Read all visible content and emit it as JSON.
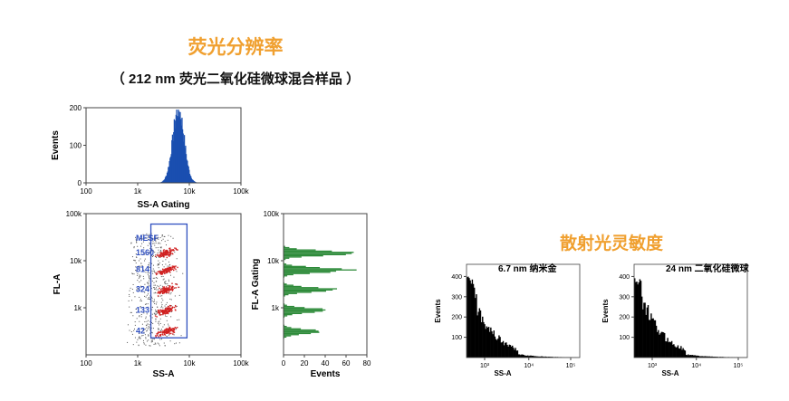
{
  "titles": {
    "main": "荧光分辨率",
    "sub": "（ 212 nm 荧光二氧化硅微球混合样品 ）",
    "sensitivity": "散射光灵敏度"
  },
  "chart_data": [
    {
      "type": "histogram",
      "xlabel": "SS-A Gating",
      "ylabel": "Events",
      "x_scale": "log",
      "x_ticks": [
        "100",
        "1k",
        "10k",
        "100k"
      ],
      "y_ticks": [
        "0",
        "100",
        "200"
      ],
      "ylim": [
        0,
        200
      ],
      "color": "#1a4fb0",
      "peak": {
        "x": 6000,
        "y": 195
      }
    },
    {
      "type": "scatter",
      "xlabel": "SS-A",
      "ylabel": "FL-A",
      "x_scale": "log",
      "y_scale": "log",
      "x_ticks": [
        "100",
        "1k",
        "10k",
        "100k"
      ],
      "y_ticks": [
        "1k",
        "10k",
        "100k"
      ],
      "gate_label": "MESF",
      "populations": [
        {
          "label": "1560",
          "fl": 15000
        },
        {
          "label": "814",
          "fl": 6500
        },
        {
          "label": "324",
          "fl": 2500
        },
        {
          "label": "133",
          "fl": 900
        },
        {
          "label": "42",
          "fl": 320
        }
      ],
      "gate_color": "#3050c0",
      "point_color": "#d02020"
    },
    {
      "type": "histogram",
      "orientation": "horizontal",
      "xlabel": "Events",
      "ylabel": "FL-A Gating",
      "y_scale": "log",
      "x_ticks": [
        "0",
        "20",
        "40",
        "60",
        "80"
      ],
      "y_ticks": [
        "1k",
        "10k",
        "100k"
      ],
      "xlim": [
        0,
        80
      ],
      "color": "#2e8b3a",
      "peaks": [
        {
          "fl": 15000,
          "count": 70
        },
        {
          "fl": 6500,
          "count": 63
        },
        {
          "fl": 2500,
          "count": 50
        },
        {
          "fl": 900,
          "count": 46
        },
        {
          "fl": 320,
          "count": 35
        }
      ]
    },
    {
      "type": "histogram",
      "title": "6.7 nm 纳米金",
      "xlabel": "SS-A",
      "ylabel": "Events",
      "x_scale": "log",
      "x_ticks": [
        "10³",
        "10⁴",
        "10⁵"
      ],
      "y_ticks": [
        "100",
        "200",
        "300",
        "400"
      ],
      "ylim": [
        0,
        460
      ],
      "color": "#000000",
      "peak_count": 400
    },
    {
      "type": "histogram",
      "title": "24 nm 二氧化硅微球",
      "xlabel": "SS-A",
      "ylabel": "Events",
      "x_scale": "log",
      "x_ticks": [
        "10³",
        "10⁴",
        "10⁵"
      ],
      "y_ticks": [
        "100",
        "200",
        "300",
        "400"
      ],
      "ylim": [
        0,
        460
      ],
      "color": "#000000",
      "peak_count": 400
    }
  ]
}
